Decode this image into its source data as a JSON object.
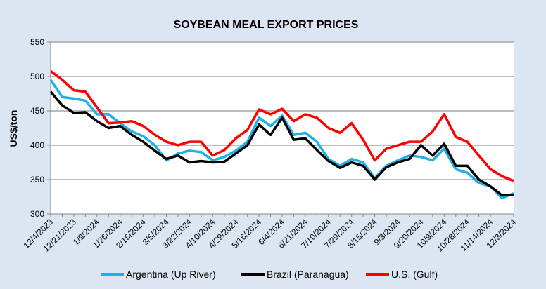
{
  "chart_data": {
    "type": "line",
    "title": "SOYBEAN MEAL EXPORT PRICES",
    "xlabel": "",
    "ylabel": "US$/ton",
    "ylim": [
      300,
      550
    ],
    "yticks": [
      300,
      350,
      400,
      450,
      500,
      550
    ],
    "grid": true,
    "legend_position": "bottom",
    "x_tick_labels": [
      "12/4/2023",
      "12/21/2023",
      "1/9/2024",
      "1/26/2024",
      "2/15/2024",
      "3/5/2024",
      "3/22/2024",
      "4/10/2024",
      "4/29/2024",
      "5/16/2024",
      "6/4/2024",
      "6/21/2024",
      "7/10/2024",
      "7/29/2024",
      "8/15/2024",
      "9/3/2024",
      "9/20/2024",
      "10/9/2024",
      "10/28/2024",
      "11/14/2024",
      "12/3/2024"
    ],
    "x_positions_note": "values sampled at each tick label and midway between ticks",
    "series": [
      {
        "name": "Argentina (Up River)",
        "color": "#1fb0e8",
        "values": [
          495,
          470,
          468,
          465,
          445,
          445,
          432,
          420,
          413,
          400,
          378,
          388,
          392,
          390,
          378,
          383,
          392,
          405,
          440,
          428,
          443,
          415,
          418,
          405,
          380,
          370,
          380,
          375,
          352,
          370,
          378,
          385,
          383,
          378,
          395,
          365,
          360,
          345,
          340,
          323,
          330
        ]
      },
      {
        "name": "Brazil (Paranagua)",
        "color": "#000000",
        "values": [
          478,
          458,
          447,
          448,
          435,
          425,
          428,
          415,
          405,
          392,
          380,
          385,
          375,
          377,
          375,
          376,
          388,
          400,
          430,
          415,
          440,
          408,
          410,
          393,
          377,
          367,
          375,
          370,
          350,
          368,
          375,
          380,
          400,
          385,
          402,
          370,
          370,
          350,
          340,
          327,
          328
        ]
      },
      {
        "name": "U.S. (Gulf)",
        "color": "#ff0000",
        "values": [
          508,
          495,
          480,
          478,
          455,
          432,
          433,
          435,
          428,
          415,
          405,
          400,
          405,
          405,
          385,
          393,
          410,
          422,
          452,
          445,
          453,
          435,
          445,
          440,
          425,
          418,
          432,
          408,
          378,
          395,
          400,
          405,
          405,
          420,
          445,
          412,
          405,
          385,
          365,
          355,
          348
        ]
      }
    ]
  }
}
